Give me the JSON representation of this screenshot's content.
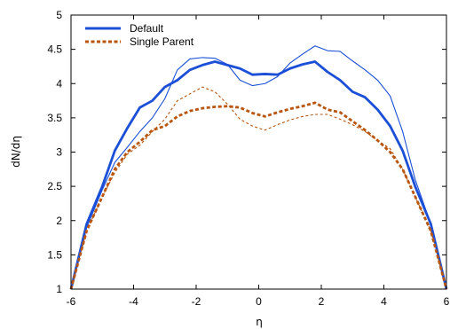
{
  "chart_data": {
    "type": "line",
    "xlabel": "η",
    "ylabel": "dN/dη",
    "xlim": [
      -6,
      6
    ],
    "ylim": [
      1,
      5
    ],
    "xticks": [
      -6,
      -4,
      -2,
      0,
      2,
      4,
      6
    ],
    "yticks": [
      1,
      1.5,
      2,
      2.5,
      3,
      3.5,
      4,
      4.5,
      5
    ],
    "xtick_labels": [
      "-6",
      "-4",
      "-2",
      "0",
      "2",
      "4",
      "6"
    ],
    "ytick_labels": [
      "1",
      "1.5",
      "2",
      "2.5",
      "3",
      "3.5",
      "4",
      "4.5",
      "5"
    ],
    "legend": {
      "position": "top-left",
      "entries": [
        {
          "label": "Default",
          "color": "#1a4fd6",
          "style": "solid"
        },
        {
          "label": "Single Parent",
          "color": "#b8560f",
          "style": "dashed"
        }
      ]
    },
    "grid": false,
    "series": [
      {
        "name": "Default",
        "color": "#1a4fd6",
        "style": "solid",
        "weight": "thick",
        "points": [
          [
            -6.0,
            1.0
          ],
          [
            -5.5,
            1.95
          ],
          [
            -5.0,
            2.5
          ],
          [
            -4.6,
            3.02
          ],
          [
            -4.2,
            3.35
          ],
          [
            -3.8,
            3.65
          ],
          [
            -3.4,
            3.75
          ],
          [
            -3.0,
            3.95
          ],
          [
            -2.6,
            4.05
          ],
          [
            -2.2,
            4.2
          ],
          [
            -1.8,
            4.27
          ],
          [
            -1.4,
            4.32
          ],
          [
            -1.0,
            4.27
          ],
          [
            -0.6,
            4.22
          ],
          [
            -0.2,
            4.13
          ],
          [
            0.2,
            4.14
          ],
          [
            0.6,
            4.13
          ],
          [
            1.0,
            4.22
          ],
          [
            1.4,
            4.28
          ],
          [
            1.8,
            4.32
          ],
          [
            2.2,
            4.17
          ],
          [
            2.6,
            4.05
          ],
          [
            3.0,
            3.88
          ],
          [
            3.4,
            3.8
          ],
          [
            3.8,
            3.62
          ],
          [
            4.2,
            3.38
          ],
          [
            4.6,
            3.02
          ],
          [
            5.0,
            2.5
          ],
          [
            5.5,
            1.95
          ],
          [
            6.0,
            1.0
          ]
        ]
      },
      {
        "name": "Default",
        "color": "#1a4fd6",
        "style": "solid",
        "weight": "thin",
        "points": [
          [
            -6.0,
            1.0
          ],
          [
            -5.5,
            1.9
          ],
          [
            -5.0,
            2.45
          ],
          [
            -4.6,
            2.85
          ],
          [
            -4.2,
            3.07
          ],
          [
            -3.8,
            3.3
          ],
          [
            -3.4,
            3.5
          ],
          [
            -3.0,
            3.78
          ],
          [
            -2.6,
            4.2
          ],
          [
            -2.2,
            4.36
          ],
          [
            -1.8,
            4.38
          ],
          [
            -1.4,
            4.37
          ],
          [
            -1.0,
            4.28
          ],
          [
            -0.6,
            4.05
          ],
          [
            -0.2,
            3.97
          ],
          [
            0.2,
            4.0
          ],
          [
            0.6,
            4.1
          ],
          [
            1.0,
            4.3
          ],
          [
            1.4,
            4.43
          ],
          [
            1.8,
            4.55
          ],
          [
            2.2,
            4.48
          ],
          [
            2.6,
            4.47
          ],
          [
            3.0,
            4.33
          ],
          [
            3.4,
            4.2
          ],
          [
            3.8,
            4.05
          ],
          [
            4.2,
            3.82
          ],
          [
            4.6,
            3.3
          ],
          [
            5.0,
            2.6
          ],
          [
            5.5,
            1.95
          ],
          [
            6.0,
            1.0
          ]
        ]
      },
      {
        "name": "Single Parent",
        "color": "#b8560f",
        "style": "dashed",
        "weight": "thick",
        "points": [
          [
            -6.0,
            1.0
          ],
          [
            -5.5,
            1.85
          ],
          [
            -5.0,
            2.35
          ],
          [
            -4.6,
            2.75
          ],
          [
            -4.2,
            3.0
          ],
          [
            -3.8,
            3.15
          ],
          [
            -3.4,
            3.32
          ],
          [
            -3.0,
            3.38
          ],
          [
            -2.6,
            3.52
          ],
          [
            -2.2,
            3.6
          ],
          [
            -1.8,
            3.64
          ],
          [
            -1.4,
            3.66
          ],
          [
            -1.0,
            3.67
          ],
          [
            -0.6,
            3.65
          ],
          [
            -0.2,
            3.57
          ],
          [
            0.2,
            3.52
          ],
          [
            0.6,
            3.58
          ],
          [
            1.0,
            3.63
          ],
          [
            1.4,
            3.67
          ],
          [
            1.8,
            3.72
          ],
          [
            2.2,
            3.62
          ],
          [
            2.6,
            3.58
          ],
          [
            3.0,
            3.45
          ],
          [
            3.4,
            3.32
          ],
          [
            3.8,
            3.17
          ],
          [
            4.2,
            3.0
          ],
          [
            4.6,
            2.75
          ],
          [
            5.0,
            2.35
          ],
          [
            5.5,
            1.85
          ],
          [
            6.0,
            1.0
          ]
        ]
      },
      {
        "name": "Single Parent",
        "color": "#b8560f",
        "style": "dashed",
        "weight": "thin",
        "points": [
          [
            -6.0,
            1.0
          ],
          [
            -5.5,
            1.85
          ],
          [
            -5.0,
            2.35
          ],
          [
            -4.6,
            2.7
          ],
          [
            -4.2,
            2.97
          ],
          [
            -3.8,
            3.1
          ],
          [
            -3.4,
            3.3
          ],
          [
            -3.0,
            3.48
          ],
          [
            -2.6,
            3.75
          ],
          [
            -2.2,
            3.85
          ],
          [
            -1.8,
            3.95
          ],
          [
            -1.4,
            3.88
          ],
          [
            -1.0,
            3.7
          ],
          [
            -0.6,
            3.48
          ],
          [
            -0.2,
            3.38
          ],
          [
            0.2,
            3.32
          ],
          [
            0.6,
            3.4
          ],
          [
            1.0,
            3.47
          ],
          [
            1.4,
            3.52
          ],
          [
            1.8,
            3.55
          ],
          [
            2.2,
            3.55
          ],
          [
            2.6,
            3.48
          ],
          [
            3.0,
            3.4
          ],
          [
            3.4,
            3.3
          ],
          [
            3.8,
            3.17
          ],
          [
            4.2,
            3.05
          ],
          [
            4.6,
            2.75
          ],
          [
            5.0,
            2.35
          ],
          [
            5.5,
            1.85
          ],
          [
            6.0,
            1.0
          ]
        ]
      }
    ]
  }
}
